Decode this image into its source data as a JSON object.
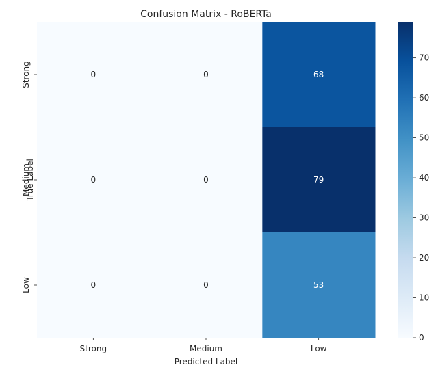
{
  "chart_data": {
    "type": "heatmap",
    "title": "Confusion Matrix - RoBERTa",
    "xlabel": "Predicted Label",
    "ylabel": "True Label",
    "x_categories": [
      "Strong",
      "Medium",
      "Low"
    ],
    "y_categories": [
      "Strong",
      "Medium",
      "Low"
    ],
    "values": [
      [
        0,
        0,
        68
      ],
      [
        0,
        0,
        79
      ],
      [
        0,
        0,
        53
      ]
    ],
    "colorbar": {
      "min": 0,
      "max": 79,
      "ticks": [
        "0",
        "10",
        "20",
        "30",
        "40",
        "50",
        "60",
        "70"
      ],
      "colormap": "Blues",
      "colors": [
        "#f7fbff",
        "#deebf7",
        "#c6dbef",
        "#9ecae1",
        "#6baed6",
        "#4292c6",
        "#2171b5",
        "#08519c",
        "#08306b"
      ]
    },
    "annotation_colors": {
      "dark": "#262626",
      "light": "#ffffff"
    }
  }
}
